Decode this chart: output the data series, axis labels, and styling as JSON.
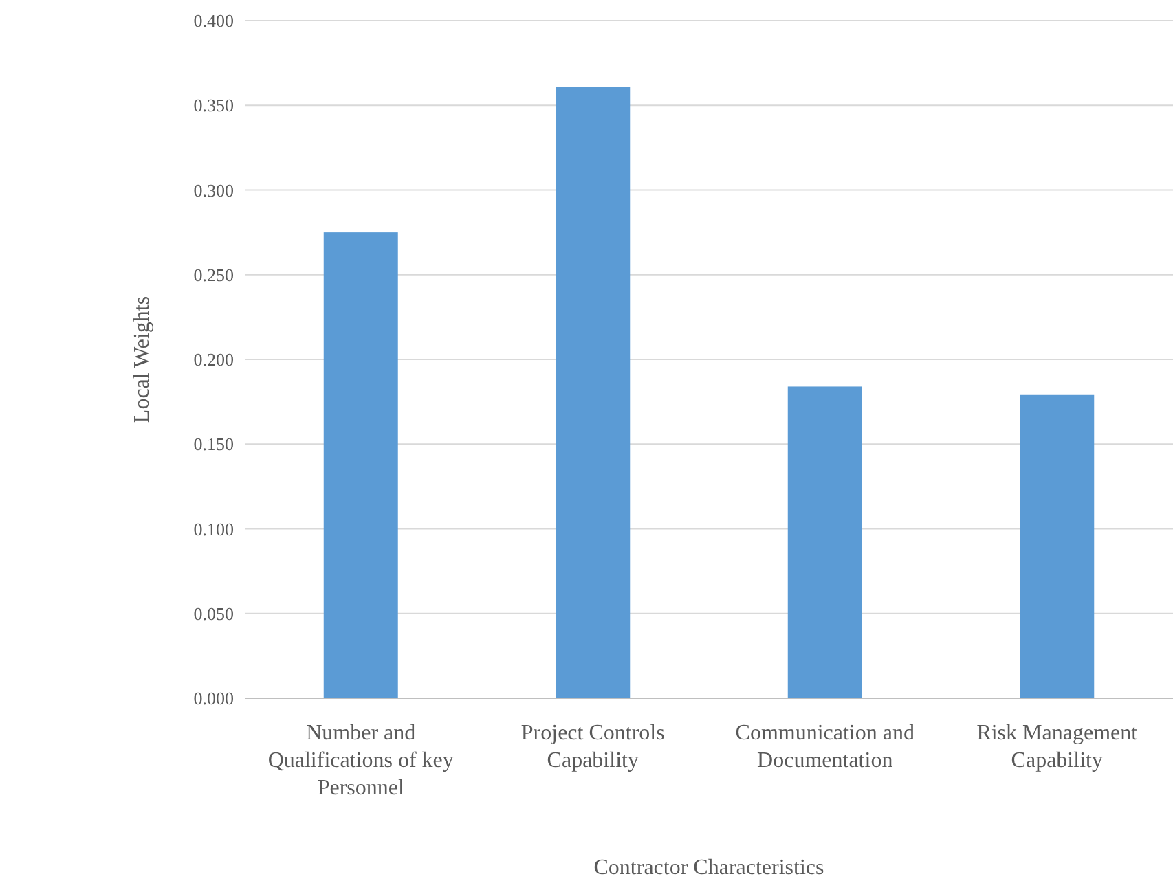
{
  "chart_data": {
    "type": "bar",
    "xlabel": "Contractor Characteristics",
    "ylabel": "Local Weights",
    "categories": [
      "Number and Qualifications of key Personnel",
      "Project Controls Capability",
      "Communication and Documentation",
      "Risk Management Capability"
    ],
    "values": [
      0.275,
      0.361,
      0.184,
      0.179
    ],
    "color": "#5b9bd5",
    "ylim": [
      0,
      0.4
    ],
    "yticks": [
      {
        "value": 0,
        "label": "0.000"
      },
      {
        "value": 0.05,
        "label": "0.050"
      },
      {
        "value": 0.1,
        "label": "0.100"
      },
      {
        "value": 0.15,
        "label": "0.150"
      },
      {
        "value": 0.2,
        "label": "0.200"
      },
      {
        "value": 0.25,
        "label": "0.250"
      },
      {
        "value": 0.3,
        "label": "0.300"
      },
      {
        "value": 0.35,
        "label": "0.350"
      },
      {
        "value": 0.4,
        "label": "0.400"
      }
    ],
    "grid": "y"
  }
}
